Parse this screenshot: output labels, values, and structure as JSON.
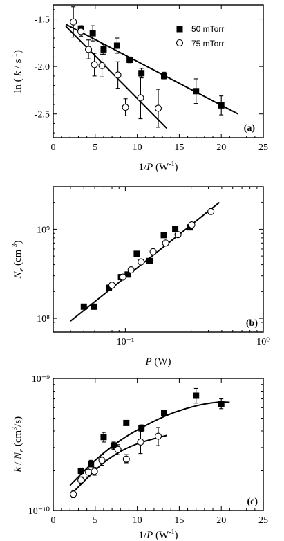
{
  "chart_data": [
    {
      "type": "scatter",
      "panel_label": "(a)",
      "xlabel": "1/P (W⁻¹)",
      "ylabel": "ln (k / s⁻¹)",
      "xlim": [
        0,
        25
      ],
      "ylim": [
        -2.75,
        -1.35
      ],
      "xticks": [
        0,
        5,
        10,
        15,
        20,
        25
      ],
      "yticks": [
        -1.5,
        -2.0,
        -2.5
      ],
      "ytick_labels": [
        "-1.5",
        "-2.0",
        "-2.5"
      ],
      "grid": false,
      "legend_position": "top-right",
      "legend_labels": [
        "50 mTorr",
        "75 mTorr"
      ],
      "series": [
        {
          "name": "50 mTorr",
          "marker": "filled-square",
          "x": [
            3.3,
            4.7,
            6.0,
            7.6,
            9.1,
            10.5,
            13.2,
            17.0,
            20.0
          ],
          "y": [
            -1.6,
            -1.65,
            -1.82,
            -1.78,
            -1.93,
            -2.07,
            -2.1,
            -2.26,
            -2.41
          ],
          "err": [
            0.03,
            0.08,
            0.05,
            0.08,
            0.03,
            0.05,
            0.04,
            0.13,
            0.1
          ]
        },
        {
          "name": "75 mTorr",
          "marker": "open-circle",
          "x": [
            2.4,
            3.3,
            4.2,
            4.9,
            5.8,
            7.7,
            8.6,
            10.4,
            12.5
          ],
          "y": [
            -1.53,
            -1.63,
            -1.82,
            -1.98,
            -1.99,
            -2.09,
            -2.43,
            -2.33,
            -2.44
          ],
          "err": [
            0.16,
            0.05,
            0.1,
            0.12,
            0.12,
            0.14,
            0.09,
            0.22,
            0.2
          ]
        }
      ],
      "fit_lines": [
        {
          "series": "50 mTorr",
          "x": [
            1.5,
            22.0
          ],
          "y": [
            -1.555,
            -2.5
          ]
        },
        {
          "series": "75 mTorr",
          "x": [
            1.5,
            13.5
          ],
          "y": [
            -1.575,
            -2.65
          ]
        }
      ]
    },
    {
      "type": "scatter",
      "panel_label": "(b)",
      "xlabel": "P (W)",
      "ylabel": "Nₑ (cm⁻³)",
      "xscale": "log",
      "yscale": "log",
      "xlim": [
        0.03,
        1.0
      ],
      "ylim": [
        70000000.0,
        3000000000.0
      ],
      "xticks": [
        0.1,
        1.0
      ],
      "xtick_labels": [
        "10⁻¹",
        "10⁰"
      ],
      "yticks": [
        100000000.0,
        1000000000.0
      ],
      "ytick_labels": [
        "10⁸",
        "10⁹"
      ],
      "grid": false,
      "series": [
        {
          "name": "50 mTorr",
          "marker": "filled-square",
          "x": [
            0.05,
            0.059,
            0.076,
            0.093,
            0.104,
            0.121,
            0.15,
            0.19,
            0.23,
            0.295
          ],
          "y": [
            135000000.0,
            135000000.0,
            220000000.0,
            290000000.0,
            310000000.0,
            530000000.0,
            440000000.0,
            860000000.0,
            1000000000.0,
            1050000000.0
          ]
        },
        {
          "name": "75 mTorr",
          "marker": "open-circle",
          "x": [
            0.08,
            0.096,
            0.11,
            0.13,
            0.159,
            0.196,
            0.241,
            0.303,
            0.417
          ],
          "y": [
            235000000.0,
            290000000.0,
            350000000.0,
            430000000.0,
            560000000.0,
            700000000.0,
            870000000.0,
            1120000000.0,
            1580000000.0
          ]
        }
      ],
      "fit_lines": [
        {
          "x": [
            0.04,
            0.48
          ],
          "y": [
            93000000.0,
            2000000000.0
          ]
        }
      ]
    },
    {
      "type": "scatter",
      "panel_label": "(c)",
      "xlabel": "1/P (W⁻¹)",
      "ylabel": "k / Nₑ (cm³/s)",
      "yscale": "log",
      "xlim": [
        0,
        25
      ],
      "ylim": [
        1e-10,
        1e-09
      ],
      "xticks": [
        0,
        5,
        10,
        15,
        20,
        25
      ],
      "yticks": [
        1e-10,
        1e-09
      ],
      "ytick_labels": [
        "10⁻¹⁰",
        "10⁻⁹"
      ],
      "grid": false,
      "series": [
        {
          "name": "50 mTorr",
          "marker": "filled-square",
          "x": [
            3.3,
            4.5,
            6.0,
            7.2,
            8.7,
            10.5,
            13.2,
            17.0,
            20.0
          ],
          "y": [
            2e-10,
            2.25e-10,
            3.6e-10,
            3.1e-10,
            4.6e-10,
            4.2e-10,
            5.5e-10,
            7.4e-10,
            6.4e-10
          ],
          "err_low": [
            1.9e-10,
            2.1e-10,
            3.3e-10,
            2.9e-10,
            4.45e-10,
            3.95e-10,
            5.3e-10,
            6.5e-10,
            5.9e-10
          ],
          "err_high": [
            2.1e-10,
            2.4e-10,
            3.9e-10,
            3.3e-10,
            4.75e-10,
            4.45e-10,
            5.7e-10,
            8.4e-10,
            7e-10
          ]
        },
        {
          "name": "75 mTorr",
          "marker": "open-circle",
          "x": [
            2.4,
            3.3,
            4.2,
            4.9,
            5.8,
            7.7,
            8.7,
            10.4,
            12.5
          ],
          "y": [
            1.33e-10,
            1.7e-10,
            1.95e-10,
            1.98e-10,
            2.4e-10,
            2.9e-10,
            2.45e-10,
            3.3e-10,
            3.65e-10
          ],
          "err_low": [
            1.25e-10,
            1.6e-10,
            1.8e-10,
            1.85e-10,
            2.2e-10,
            2.65e-10,
            2.3e-10,
            2.7e-10,
            3.1e-10
          ],
          "err_high": [
            1.42e-10,
            1.8e-10,
            2.1e-10,
            2.12e-10,
            2.65e-10,
            3.15e-10,
            2.65e-10,
            4e-10,
            4.25e-10
          ]
        }
      ],
      "fit_curves": [
        {
          "series": "50 mTorr",
          "x": [
            2.0,
            5.0,
            8.0,
            11.0,
            14.0,
            17.0,
            19.5,
            21.0
          ],
          "y": [
            1.55e-10,
            2.4e-10,
            3.4e-10,
            4.4e-10,
            5.4e-10,
            6.2e-10,
            6.6e-10,
            6.6e-10
          ]
        },
        {
          "series": "75 mTorr",
          "x": [
            2.0,
            4.0,
            6.0,
            8.0,
            10.0,
            12.0,
            13.5
          ],
          "y": [
            1.3e-10,
            1.75e-10,
            2.3e-10,
            2.8e-10,
            3.2e-10,
            3.5e-10,
            3.7e-10
          ]
        }
      ]
    }
  ]
}
